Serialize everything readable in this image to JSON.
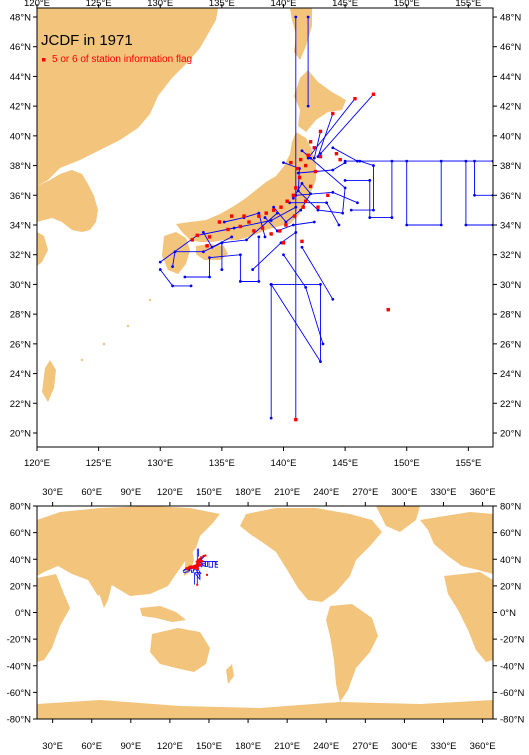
{
  "colors": {
    "land": "#f2c47c",
    "ocean": "#ffffff",
    "track": "#0000ff",
    "flag": "#ff0000",
    "frame": "#000000"
  },
  "top_map": {
    "title": "JCDF in 1971",
    "legend_label": "5 or 6 of station information flag",
    "x_ticks": [
      {
        "lon": 120,
        "label": "120°E"
      },
      {
        "lon": 125,
        "label": "125°E"
      },
      {
        "lon": 130,
        "label": "130°E"
      },
      {
        "lon": 135,
        "label": "135°E"
      },
      {
        "lon": 140,
        "label": "140°E"
      },
      {
        "lon": 145,
        "label": "145°E"
      },
      {
        "lon": 150,
        "label": "150°E"
      },
      {
        "lon": 155,
        "label": "155°E"
      }
    ],
    "y_ticks": [
      {
        "lat": 48,
        "label": "48°N"
      },
      {
        "lat": 46,
        "label": "46°N"
      },
      {
        "lat": 44,
        "label": "44°N"
      },
      {
        "lat": 42,
        "label": "42°N"
      },
      {
        "lat": 40,
        "label": "40°N"
      },
      {
        "lat": 38,
        "label": "38°N"
      },
      {
        "lat": 36,
        "label": "36°N"
      },
      {
        "lat": 34,
        "label": "34°N"
      },
      {
        "lat": 32,
        "label": "32°N"
      },
      {
        "lat": 30,
        "label": "30°N"
      },
      {
        "lat": 28,
        "label": "28°N"
      },
      {
        "lat": 26,
        "label": "26°N"
      },
      {
        "lat": 24,
        "label": "24°N"
      },
      {
        "lat": 22,
        "label": "22°N"
      },
      {
        "lat": 20,
        "label": "20°N"
      }
    ]
  },
  "bottom_map": {
    "x_ticks": [
      {
        "lon": 30,
        "label": "30°E"
      },
      {
        "lon": 60,
        "label": "60°E"
      },
      {
        "lon": 90,
        "label": "90°E"
      },
      {
        "lon": 120,
        "label": "120°E"
      },
      {
        "lon": 150,
        "label": "150°E"
      },
      {
        "lon": 180,
        "label": "180°E"
      },
      {
        "lon": 210,
        "label": "210°E"
      },
      {
        "lon": 240,
        "label": "240°E"
      },
      {
        "lon": 270,
        "label": "270°E"
      },
      {
        "lon": 300,
        "label": "300°E"
      },
      {
        "lon": 330,
        "label": "330°E"
      },
      {
        "lon": 360,
        "label": "360°E"
      }
    ],
    "y_ticks": [
      {
        "lat": 80,
        "label": "80°N"
      },
      {
        "lat": 60,
        "label": "60°N"
      },
      {
        "lat": 40,
        "label": "40°N"
      },
      {
        "lat": 20,
        "label": "20°N"
      },
      {
        "lat": 0,
        "label": "0°N"
      },
      {
        "lat": -20,
        "label": "-20°N"
      },
      {
        "lat": -40,
        "label": "-40°N"
      },
      {
        "lat": -60,
        "label": "-60°N"
      },
      {
        "lat": -80,
        "label": "-80°N"
      }
    ]
  },
  "tracks": [
    [
      [
        141.0,
        48.0
      ],
      [
        141.0,
        20.9
      ]
    ],
    [
      [
        142.0,
        48.0
      ],
      [
        142.0,
        42.0
      ]
    ],
    [
      [
        145.0,
        38.3
      ],
      [
        157.0,
        38.3
      ]
    ],
    [
      [
        145.0,
        37.0
      ],
      [
        147.0,
        37.0
      ],
      [
        147.0,
        34.5
      ],
      [
        148.8,
        34.5
      ],
      [
        148.8,
        38.3
      ]
    ],
    [
      [
        150.0,
        38.3
      ],
      [
        150.0,
        34.0
      ],
      [
        152.8,
        34.0
      ],
      [
        152.8,
        38.3
      ],
      [
        154.8,
        38.3
      ],
      [
        154.8,
        34.0
      ],
      [
        157.0,
        34.0
      ]
    ],
    [
      [
        155.5,
        38.3
      ],
      [
        155.5,
        36.0
      ],
      [
        157.0,
        36.0
      ]
    ],
    [
      [
        145.5,
        35.0
      ],
      [
        147.3,
        35.0
      ],
      [
        147.3,
        38.0
      ],
      [
        146.2,
        38.3
      ]
    ],
    [
      [
        139.0,
        30.0
      ],
      [
        143.0,
        30.0
      ],
      [
        143.0,
        24.8
      ],
      [
        139.0,
        30.0
      ]
    ],
    [
      [
        139.0,
        30.0
      ],
      [
        139.0,
        21.0
      ]
    ],
    [
      [
        140.0,
        32.0
      ],
      [
        141.8,
        29.8
      ],
      [
        143.2,
        26.0
      ]
    ],
    [
      [
        141.5,
        32.5
      ],
      [
        144.0,
        29.0
      ]
    ],
    [
      [
        130.0,
        31.0
      ],
      [
        131.0,
        29.9
      ],
      [
        132.5,
        29.9
      ]
    ],
    [
      [
        130.0,
        31.5
      ],
      [
        133.0,
        33.3
      ],
      [
        136.0,
        33.8
      ],
      [
        139.0,
        34.3
      ],
      [
        141.0,
        35.2
      ]
    ],
    [
      [
        131.0,
        31.2
      ],
      [
        131.2,
        32.2
      ],
      [
        133.5,
        32.2
      ],
      [
        135.0,
        32.8
      ],
      [
        137.0,
        33.0
      ],
      [
        139.5,
        34.8
      ]
    ],
    [
      [
        132.0,
        30.5
      ],
      [
        134.0,
        30.5
      ],
      [
        134.0,
        31.8
      ],
      [
        136.5,
        32.0
      ],
      [
        136.5,
        30.2
      ],
      [
        138.0,
        30.2
      ],
      [
        138.0,
        33.2
      ]
    ],
    [
      [
        135.0,
        31.0
      ],
      [
        135.0,
        32.8
      ]
    ],
    [
      [
        137.5,
        31.0
      ],
      [
        139.8,
        32.8
      ],
      [
        141.0,
        33.5
      ]
    ],
    [
      [
        140.0,
        38.2
      ],
      [
        141.3,
        37.8
      ],
      [
        141.2,
        36.3
      ],
      [
        142.8,
        35.0
      ],
      [
        144.8,
        34.8
      ],
      [
        145.0,
        36.5
      ],
      [
        142.2,
        38.5
      ],
      [
        141.5,
        39.0
      ]
    ],
    [
      [
        141.2,
        37.5
      ],
      [
        144.0,
        37.7
      ],
      [
        145.0,
        38.2
      ]
    ],
    [
      [
        141.0,
        36.0
      ],
      [
        144.0,
        36.2
      ],
      [
        146.0,
        35.5
      ]
    ],
    [
      [
        140.5,
        35.5
      ],
      [
        143.5,
        35.5
      ],
      [
        144.5,
        34.0
      ]
    ],
    [
      [
        142.0,
        38.5
      ],
      [
        145.8,
        42.5
      ]
    ],
    [
      [
        143.0,
        38.8
      ],
      [
        147.3,
        42.8
      ]
    ],
    [
      [
        142.8,
        38.6
      ],
      [
        144.0,
        41.5
      ]
    ],
    [
      [
        142.5,
        38.5
      ],
      [
        143.0,
        40.3
      ]
    ],
    [
      [
        144.0,
        39.2
      ],
      [
        146.0,
        38.3
      ]
    ],
    [
      [
        138.5,
        34.5
      ],
      [
        139.5,
        33.6
      ],
      [
        140.8,
        34.0
      ],
      [
        142.5,
        34.2
      ]
    ],
    [
      [
        139.2,
        35.2
      ],
      [
        140.2,
        34.2
      ],
      [
        141.4,
        35.0
      ],
      [
        142.2,
        36.1
      ],
      [
        141.5,
        36.8
      ],
      [
        140.8,
        35.8
      ]
    ],
    [
      [
        135.2,
        34.2
      ],
      [
        136.8,
        34.5
      ],
      [
        138.0,
        34.8
      ],
      [
        138.5,
        33.2
      ]
    ],
    [
      [
        133.5,
        33.5
      ],
      [
        134.2,
        32.5
      ],
      [
        135.8,
        33.2
      ]
    ]
  ],
  "flags": [
    [
      141.0,
      20.9
    ],
    [
      148.5,
      28.3
    ],
    [
      145.8,
      42.5
    ],
    [
      147.3,
      42.8
    ],
    [
      144.0,
      41.5
    ],
    [
      143.0,
      40.3
    ],
    [
      133.0,
      33.3
    ],
    [
      134.0,
      33.2
    ],
    [
      135.5,
      33.7
    ],
    [
      136.5,
      33.9
    ],
    [
      137.2,
      34.2
    ],
    [
      138.0,
      34.6
    ],
    [
      138.6,
      34.8
    ],
    [
      139.2,
      35.0
    ],
    [
      139.8,
      35.2
    ],
    [
      140.3,
      35.6
    ],
    [
      140.8,
      36.0
    ],
    [
      141.0,
      36.5
    ],
    [
      141.3,
      37.2
    ],
    [
      141.1,
      37.8
    ],
    [
      141.4,
      38.4
    ],
    [
      142.0,
      38.7
    ],
    [
      142.5,
      39.2
    ],
    [
      143.0,
      38.6
    ],
    [
      144.3,
      38.8
    ],
    [
      144.6,
      38.4
    ],
    [
      142.2,
      39.6
    ],
    [
      141.8,
      38.0
    ],
    [
      142.6,
      37.6
    ],
    [
      142.2,
      36.6
    ],
    [
      141.8,
      35.6
    ],
    [
      140.9,
      34.6
    ],
    [
      140.2,
      34.0
    ],
    [
      139.7,
      33.6
    ],
    [
      139.0,
      33.4
    ],
    [
      138.3,
      33.8
    ],
    [
      137.6,
      33.6
    ],
    [
      136.8,
      34.6
    ],
    [
      135.8,
      34.6
    ],
    [
      134.8,
      34.2
    ],
    [
      140.0,
      32.8
    ],
    [
      141.5,
      32.9
    ],
    [
      133.8,
      32.6
    ],
    [
      132.6,
      33.0
    ],
    [
      141.6,
      35.2
    ],
    [
      142.8,
      35.2
    ],
    [
      143.6,
      36.0
    ],
    [
      140.6,
      38.2
    ]
  ]
}
